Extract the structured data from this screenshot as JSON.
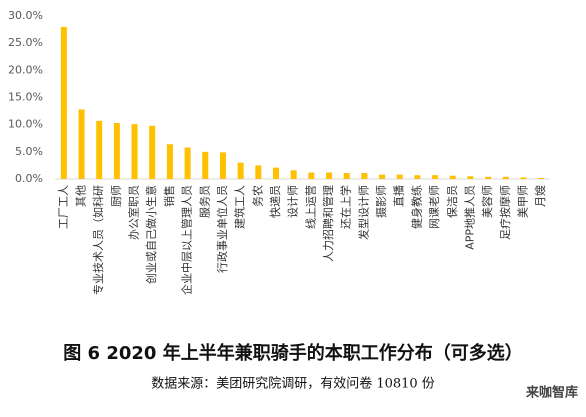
{
  "chart_data": {
    "type": "bar",
    "title": "图 6   2020 年上半年兼职骑手的本职工作分布（可多选）",
    "source": "数据来源：美团研究院调研，有效问卷 10810 份",
    "watermark": "来咖智库",
    "categories": [
      "工厂工人",
      "其他",
      "专业技术人员（如科研",
      "厨师",
      "办公室职员",
      "创业或自己做小生意",
      "销售",
      "企业中层以上管理人员",
      "服务员",
      "行政事业单位人员",
      "建筑工人",
      "务农",
      "快递员",
      "设计师",
      "线上运营",
      "人力招聘和管理",
      "还在上学",
      "发型设计师",
      "摄影师",
      "直播",
      "健身教练",
      "网课老师",
      "保洁员",
      "APP地推人员",
      "美容师",
      "足疗按摩师",
      "美甲师",
      "月嫂"
    ],
    "values": [
      28.0,
      12.8,
      10.7,
      10.3,
      10.1,
      9.8,
      6.4,
      5.8,
      5.0,
      4.9,
      3.0,
      2.5,
      2.1,
      1.6,
      1.2,
      1.2,
      1.1,
      1.1,
      0.8,
      0.8,
      0.7,
      0.7,
      0.6,
      0.5,
      0.4,
      0.4,
      0.3,
      0.2
    ],
    "color": "#FFC000",
    "ylim": [
      0,
      30
    ],
    "yticks": [
      {
        "value": 0,
        "label": "0.0%"
      },
      {
        "value": 5,
        "label": "5.0%"
      },
      {
        "value": 10,
        "label": "10.0%"
      },
      {
        "value": 15,
        "label": "15.0%"
      },
      {
        "value": 20,
        "label": "20.0%"
      },
      {
        "value": 25,
        "label": "25.0%"
      },
      {
        "value": 30,
        "label": "30.0%"
      }
    ],
    "grid": false
  }
}
